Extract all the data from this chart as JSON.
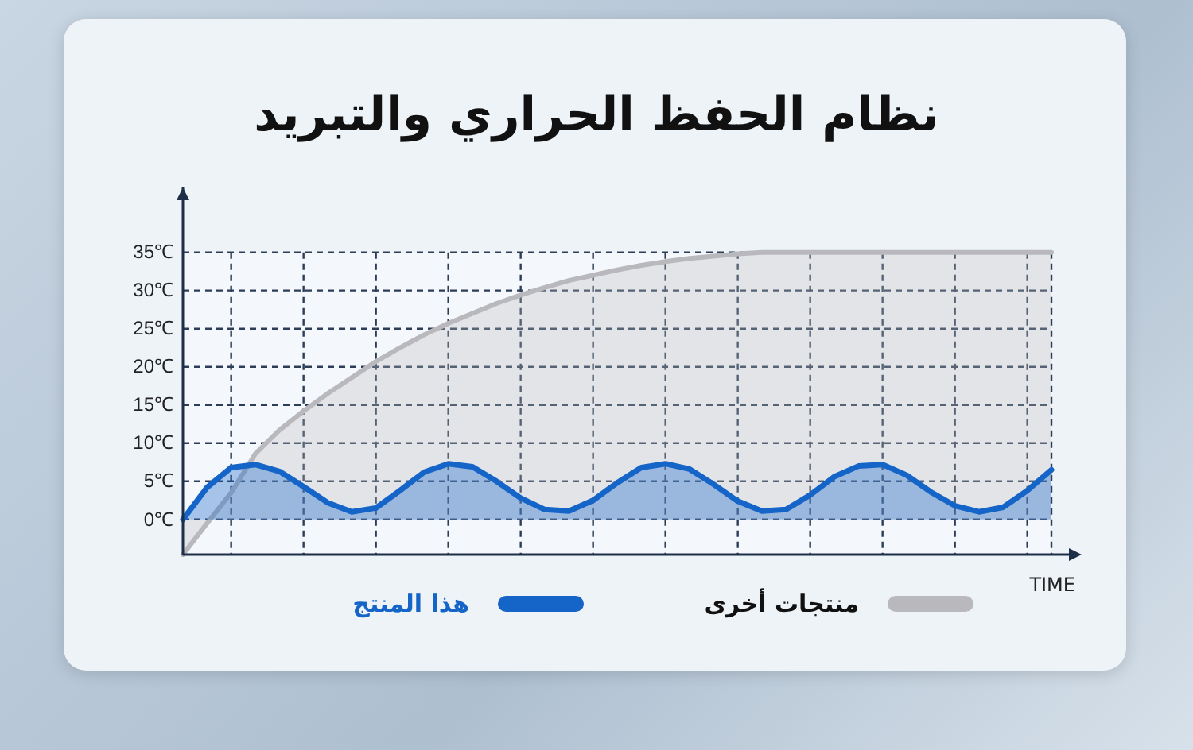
{
  "chart_data": {
    "type": "area",
    "title": "نظام الحفظ الحراري والتبريد",
    "xlabel": "TIME",
    "categories": [
      null,
      null,
      null,
      null,
      null,
      null,
      null,
      null,
      null,
      null,
      null,
      null,
      null,
      null,
      null,
      null,
      null,
      null,
      null,
      null,
      null,
      null,
      null,
      null,
      null,
      null,
      null,
      null,
      null,
      null,
      null,
      null,
      null,
      null,
      null,
      null,
      null
    ],
    "ylim": [
      -4.6,
      43.5
    ],
    "yticks": [
      {
        "value": 0,
        "label": "0℃"
      },
      {
        "value": 5,
        "label": "5℃"
      },
      {
        "value": 10,
        "label": "10℃"
      },
      {
        "value": 15,
        "label": "15℃"
      },
      {
        "value": 20,
        "label": "20℃"
      },
      {
        "value": 25,
        "label": "25℃"
      },
      {
        "value": 30,
        "label": "30℃"
      },
      {
        "value": 35,
        "label": "35℃"
      }
    ],
    "grid": true,
    "tick_labels": "y",
    "legend": "bottom",
    "series": [
      {
        "name": "منتجات أخرى",
        "color": "#b9b9bd",
        "values": [
          -4.6,
          -0.5,
          3.5,
          8.6,
          11.7,
          14.2,
          16.5,
          18.6,
          20.7,
          22.5,
          24.2,
          25.7,
          27,
          28.3,
          29.4,
          30.4,
          31.3,
          32,
          32.7,
          33.3,
          33.8,
          34.2,
          34.5,
          34.8,
          35,
          35,
          35,
          35,
          35,
          35,
          35,
          35,
          35,
          35,
          35,
          35,
          35
        ]
      },
      {
        "name": "هذا المنتج",
        "color": "#1565c8",
        "values": [
          0,
          4.2,
          6.8,
          7.2,
          6.3,
          4.3,
          2.2,
          1.0,
          1.5,
          3.8,
          6.2,
          7.3,
          6.9,
          5.0,
          2.8,
          1.3,
          1.1,
          2.5,
          4.8,
          6.8,
          7.3,
          6.6,
          4.6,
          2.4,
          1.1,
          1.3,
          3.2,
          5.6,
          7.0,
          7.2,
          5.8,
          3.6,
          1.8,
          1.0,
          1.6,
          3.8,
          6.5
        ]
      }
    ]
  }
}
